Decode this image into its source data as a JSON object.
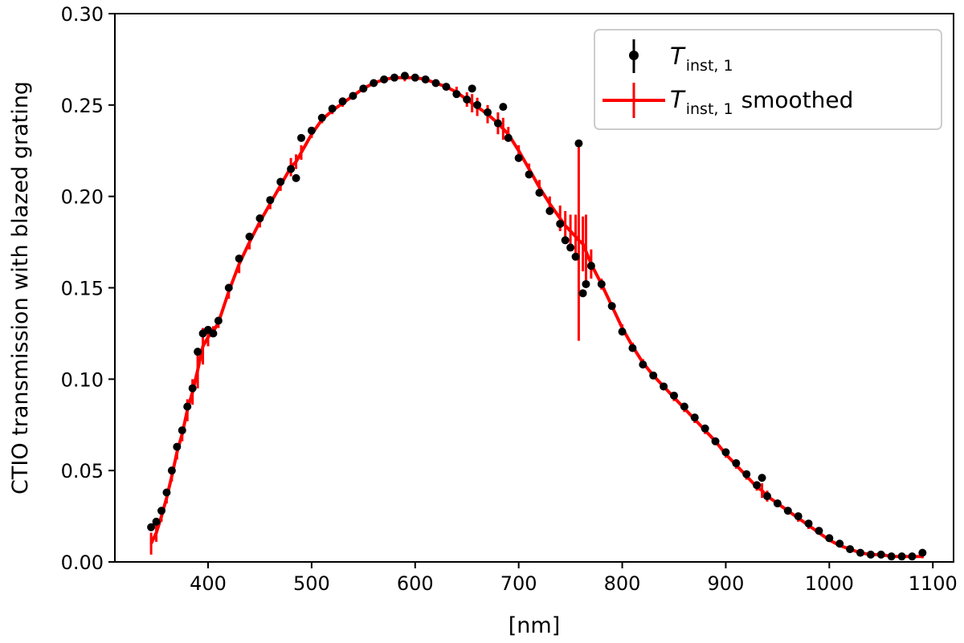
{
  "chart_data": {
    "type": "line",
    "title": "",
    "xlabel": "[nm]",
    "ylabel": "CTIO transmission with blazed grating",
    "xlim": [
      310,
      1120
    ],
    "ylim": [
      0.0,
      0.3
    ],
    "xticks": [
      400,
      500,
      600,
      700,
      800,
      900,
      1000,
      1100
    ],
    "xtick_labels": [
      "400",
      "500",
      "600",
      "700",
      "800",
      "900",
      "1000",
      "1100"
    ],
    "yticks": [
      0.0,
      0.05,
      0.1,
      0.15,
      0.2,
      0.25,
      0.3
    ],
    "ytick_labels": [
      "0.00",
      "0.05",
      "0.10",
      "0.15",
      "0.20",
      "0.25",
      "0.30"
    ],
    "grid": false,
    "legend_position": "top-right",
    "legend": [
      {
        "symbol": "T",
        "subscript": "inst, 1",
        "suffix": "",
        "color": "#000000",
        "marker": "errorbar-dot"
      },
      {
        "symbol": "T",
        "subscript": "inst, 1",
        "suffix": "smoothed",
        "color": "#ff0000",
        "marker": "errorbar-line"
      }
    ],
    "series": [
      {
        "name": "T_inst,1",
        "color": "#000000",
        "style": "points",
        "x": [
          345,
          350,
          355,
          360,
          365,
          370,
          375,
          380,
          385,
          390,
          395,
          400,
          405,
          410,
          420,
          430,
          440,
          450,
          460,
          470,
          480,
          485,
          490,
          500,
          510,
          520,
          530,
          540,
          550,
          560,
          570,
          580,
          590,
          600,
          610,
          620,
          630,
          640,
          650,
          655,
          660,
          670,
          680,
          685,
          690,
          700,
          710,
          720,
          730,
          740,
          745,
          750,
          755,
          758,
          762,
          765,
          770,
          780,
          790,
          800,
          810,
          820,
          830,
          840,
          850,
          860,
          870,
          880,
          890,
          900,
          910,
          920,
          930,
          935,
          940,
          950,
          960,
          970,
          980,
          990,
          1000,
          1010,
          1020,
          1030,
          1040,
          1050,
          1060,
          1070,
          1080,
          1090
        ],
        "y": [
          0.019,
          0.022,
          0.028,
          0.038,
          0.05,
          0.063,
          0.072,
          0.085,
          0.095,
          0.115,
          0.125,
          0.127,
          0.125,
          0.132,
          0.15,
          0.166,
          0.178,
          0.188,
          0.198,
          0.208,
          0.215,
          0.21,
          0.232,
          0.236,
          0.243,
          0.248,
          0.252,
          0.255,
          0.259,
          0.262,
          0.264,
          0.265,
          0.266,
          0.265,
          0.264,
          0.262,
          0.26,
          0.256,
          0.253,
          0.259,
          0.25,
          0.246,
          0.24,
          0.249,
          0.232,
          0.221,
          0.212,
          0.202,
          0.192,
          0.185,
          0.176,
          0.172,
          0.167,
          0.229,
          0.147,
          0.152,
          0.162,
          0.152,
          0.14,
          0.126,
          0.117,
          0.108,
          0.102,
          0.096,
          0.091,
          0.085,
          0.079,
          0.073,
          0.066,
          0.06,
          0.054,
          0.048,
          0.042,
          0.046,
          0.036,
          0.032,
          0.028,
          0.025,
          0.021,
          0.017,
          0.013,
          0.01,
          0.007,
          0.005,
          0.004,
          0.004,
          0.003,
          0.003,
          0.003,
          0.005
        ]
      },
      {
        "name": "T_inst,1 smoothed",
        "color": "#ff0000",
        "style": "line-with-errorbars",
        "x": [
          345,
          350,
          355,
          360,
          365,
          370,
          375,
          380,
          385,
          390,
          395,
          400,
          405,
          410,
          420,
          430,
          440,
          450,
          460,
          470,
          480,
          485,
          490,
          500,
          510,
          520,
          530,
          540,
          550,
          560,
          570,
          580,
          590,
          600,
          610,
          620,
          630,
          640,
          650,
          655,
          660,
          670,
          680,
          685,
          690,
          700,
          710,
          720,
          730,
          740,
          745,
          750,
          755,
          758,
          762,
          765,
          770,
          780,
          790,
          800,
          810,
          820,
          830,
          840,
          850,
          860,
          870,
          880,
          890,
          900,
          910,
          920,
          930,
          935,
          940,
          950,
          960,
          970,
          980,
          990,
          1000,
          1010,
          1020,
          1030,
          1040,
          1050,
          1060,
          1070,
          1080,
          1090
        ],
        "y": [
          0.01,
          0.016,
          0.025,
          0.035,
          0.047,
          0.06,
          0.07,
          0.083,
          0.093,
          0.105,
          0.118,
          0.123,
          0.126,
          0.131,
          0.148,
          0.163,
          0.175,
          0.186,
          0.196,
          0.206,
          0.216,
          0.219,
          0.224,
          0.234,
          0.242,
          0.247,
          0.251,
          0.255,
          0.259,
          0.262,
          0.264,
          0.265,
          0.265,
          0.265,
          0.264,
          0.262,
          0.26,
          0.257,
          0.253,
          0.251,
          0.249,
          0.245,
          0.24,
          0.237,
          0.234,
          0.225,
          0.215,
          0.205,
          0.196,
          0.188,
          0.184,
          0.181,
          0.178,
          0.176,
          0.174,
          0.17,
          0.163,
          0.152,
          0.14,
          0.128,
          0.118,
          0.109,
          0.102,
          0.096,
          0.09,
          0.084,
          0.078,
          0.072,
          0.066,
          0.059,
          0.053,
          0.047,
          0.041,
          0.039,
          0.036,
          0.032,
          0.028,
          0.024,
          0.02,
          0.016,
          0.012,
          0.009,
          0.007,
          0.005,
          0.004,
          0.004,
          0.003,
          0.003,
          0.003,
          0.003
        ],
        "yerr": [
          0.006,
          0.005,
          0.003,
          0.003,
          0.003,
          0.004,
          0.004,
          0.006,
          0.007,
          0.01,
          0.01,
          0.005,
          0.003,
          0.003,
          0.004,
          0.005,
          0.004,
          0.003,
          0.003,
          0.003,
          0.005,
          0.004,
          0.004,
          0.002,
          0.002,
          0.002,
          0.002,
          0.002,
          0.002,
          0.002,
          0.002,
          0.002,
          0.002,
          0.002,
          0.002,
          0.002,
          0.002,
          0.003,
          0.004,
          0.005,
          0.005,
          0.005,
          0.006,
          0.006,
          0.004,
          0.003,
          0.003,
          0.004,
          0.004,
          0.007,
          0.008,
          0.009,
          0.012,
          0.055,
          0.015,
          0.02,
          0.008,
          0.003,
          0.002,
          0.002,
          0.002,
          0.002,
          0.002,
          0.002,
          0.002,
          0.002,
          0.002,
          0.002,
          0.002,
          0.002,
          0.002,
          0.002,
          0.002,
          0.004,
          0.003,
          0.002,
          0.002,
          0.002,
          0.002,
          0.001,
          0.001,
          0.001,
          0.001,
          0.001,
          0.001,
          0.001,
          0.001,
          0.001,
          0.001,
          0.001
        ]
      }
    ]
  }
}
